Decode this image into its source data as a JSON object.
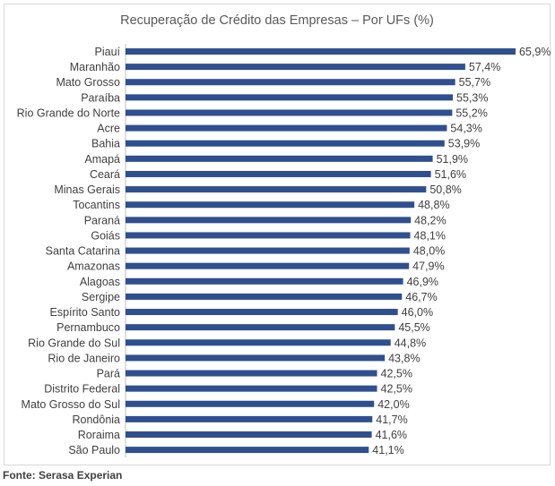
{
  "chart_data": {
    "type": "bar",
    "orientation": "horizontal",
    "title": "Recuperação de Crédito das Empresas – Por UFs (%)",
    "categories": [
      "Piauí",
      "Maranhão",
      "Mato Grosso",
      "Paraíba",
      "Rio Grande do Norte",
      "Acre",
      "Bahia",
      "Amapá",
      "Ceará",
      "Minas Gerais",
      "Tocantins",
      "Paraná",
      "Goiás",
      "Santa Catarina",
      "Amazonas",
      "Alagoas",
      "Sergipe",
      "Espírito Santo",
      "Pernambuco",
      "Rio Grande do Sul",
      "Rio de Janeiro",
      "Pará",
      "Distrito Federal",
      "Mato Grosso do Sul",
      "Rondônia",
      "Roraima",
      "São Paulo"
    ],
    "values": [
      65.9,
      57.4,
      55.7,
      55.3,
      55.2,
      54.3,
      53.9,
      51.9,
      51.6,
      50.8,
      48.8,
      48.2,
      48.1,
      48.0,
      47.9,
      46.9,
      46.7,
      46.0,
      45.5,
      44.8,
      43.8,
      42.5,
      42.5,
      42.0,
      41.7,
      41.6,
      41.1
    ],
    "value_labels": [
      "65,9%",
      "57,4%",
      "55,7%",
      "55,3%",
      "55,2%",
      "54,3%",
      "53,9%",
      "51,9%",
      "51,6%",
      "50,8%",
      "48,8%",
      "48,2%",
      "48,1%",
      "48,0%",
      "47,9%",
      "46,9%",
      "46,7%",
      "46,0%",
      "45,5%",
      "44,8%",
      "43,8%",
      "42,5%",
      "42,5%",
      "42,0%",
      "41,7%",
      "41,6%",
      "41,1%"
    ],
    "bar_color": "#2f4f8f",
    "axis_color": "#bfbfbf",
    "grid": false,
    "legend": "none"
  },
  "source_note": "Fonte: Serasa Experian"
}
